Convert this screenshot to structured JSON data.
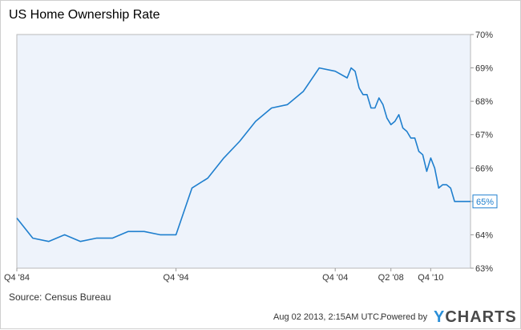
{
  "chart_data": {
    "type": "line",
    "title": "US Home Ownership Rate",
    "source": "Source: Census Bureau",
    "x_tick_labels": [
      "Q4  '84",
      "Q4  '94",
      "Q4  '04",
      "Q2  '08",
      "Q4  '10"
    ],
    "y_tick_labels": [
      "70%",
      "69%",
      "68%",
      "67%",
      "66%",
      "65%",
      "64%",
      "63%"
    ],
    "ylim": [
      63,
      70
    ],
    "xlim": [
      1984.75,
      2013.25
    ],
    "grid": false,
    "series": [
      {
        "color": "#1f7fce",
        "x": [
          1984.75,
          1985.75,
          1986.75,
          1987.75,
          1988.75,
          1989.75,
          1990.75,
          1991.75,
          1992.75,
          1993.75,
          1994.75,
          1995.75,
          1996.75,
          1997.75,
          1998.75,
          1999.75,
          2000.75,
          2001.75,
          2002.75,
          2003.75,
          2004.75,
          2005.5,
          2005.75,
          2006.0,
          2006.25,
          2006.5,
          2006.75,
          2007.0,
          2007.25,
          2007.5,
          2007.75,
          2008.0,
          2008.25,
          2008.5,
          2008.75,
          2009.0,
          2009.25,
          2009.5,
          2009.75,
          2010.0,
          2010.25,
          2010.5,
          2010.75,
          2011.0,
          2011.25,
          2011.5,
          2011.75,
          2012.0,
          2012.25,
          2012.5,
          2012.75,
          2013.0,
          2013.25
        ],
        "y": [
          64.5,
          63.9,
          63.8,
          64.0,
          63.8,
          63.9,
          63.9,
          64.1,
          64.1,
          64.0,
          64.0,
          65.4,
          65.7,
          66.3,
          66.8,
          67.4,
          67.8,
          67.9,
          68.3,
          69.0,
          68.9,
          68.7,
          69.0,
          68.9,
          68.4,
          68.2,
          68.2,
          67.8,
          67.8,
          68.1,
          67.9,
          67.5,
          67.3,
          67.4,
          67.6,
          67.2,
          67.1,
          66.9,
          66.9,
          66.5,
          66.4,
          65.9,
          66.3,
          66.0,
          65.4,
          65.5,
          65.5,
          65.4,
          65.0,
          65.0,
          65.0,
          65.0,
          65.0
        ]
      }
    ],
    "last_value_label": "65%"
  },
  "footer": {
    "timestamp": "Aug 02 2013, 2:15AM UTC.",
    "powered": "Powered by",
    "brand_y": "Y",
    "brand_rest": "CHARTS"
  }
}
